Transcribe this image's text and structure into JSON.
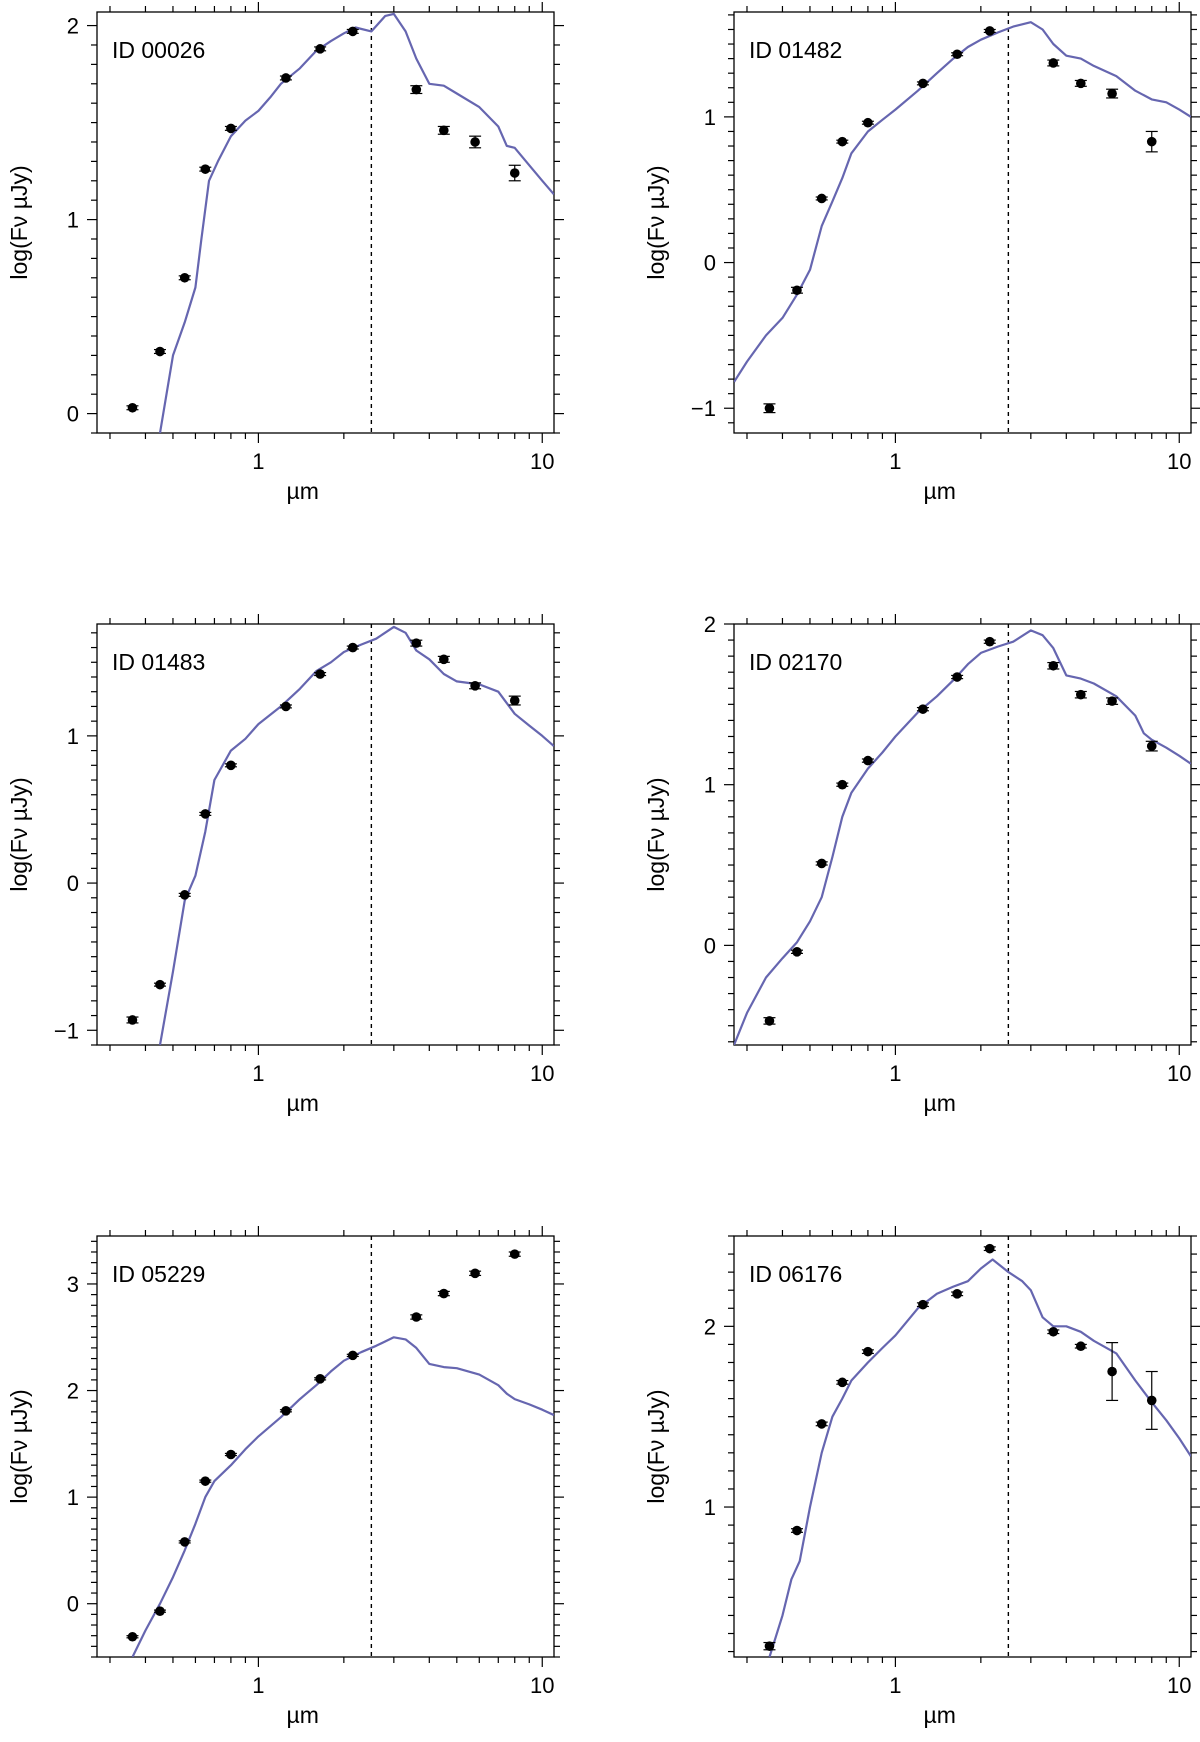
{
  "figure": {
    "xlabel": "µm",
    "ylabel": "log(Fν µJy)"
  },
  "chart_data": [
    {
      "type": "scatter",
      "title": "ID 00026",
      "xlabel": "µm",
      "ylabel": "log(Fν µJy)",
      "xscale": "log",
      "xlim": [
        0.27,
        11.0
      ],
      "ylim": [
        -0.1,
        2.07
      ],
      "xticks": [
        {
          "value": 1,
          "label": "1"
        },
        {
          "value": 10,
          "label": "10"
        }
      ],
      "yticks": [
        {
          "value": 0,
          "label": "0"
        },
        {
          "value": 1,
          "label": "1"
        },
        {
          "value": 2,
          "label": "2"
        }
      ],
      "vline": 2.5,
      "points": [
        {
          "x": 0.36,
          "y": 0.03,
          "err": 0.01
        },
        {
          "x": 0.45,
          "y": 0.32,
          "err": 0.01
        },
        {
          "x": 0.55,
          "y": 0.7,
          "err": 0.01
        },
        {
          "x": 0.65,
          "y": 1.26,
          "err": 0.01
        },
        {
          "x": 0.8,
          "y": 1.47,
          "err": 0.01
        },
        {
          "x": 1.25,
          "y": 1.73,
          "err": 0.01
        },
        {
          "x": 1.65,
          "y": 1.88,
          "err": 0.01
        },
        {
          "x": 2.15,
          "y": 1.97,
          "err": 0.01
        },
        {
          "x": 3.6,
          "y": 1.67,
          "err": 0.02
        },
        {
          "x": 4.5,
          "y": 1.46,
          "err": 0.02
        },
        {
          "x": 5.8,
          "y": 1.4,
          "err": 0.03
        },
        {
          "x": 8.0,
          "y": 1.24,
          "err": 0.04
        }
      ],
      "model": [
        [
          0.45,
          -0.1
        ],
        [
          0.5,
          0.3
        ],
        [
          0.55,
          0.47
        ],
        [
          0.6,
          0.65
        ],
        [
          0.63,
          0.9
        ],
        [
          0.67,
          1.2
        ],
        [
          0.72,
          1.3
        ],
        [
          0.8,
          1.43
        ],
        [
          0.9,
          1.51
        ],
        [
          1.0,
          1.56
        ],
        [
          1.1,
          1.63
        ],
        [
          1.2,
          1.7
        ],
        [
          1.4,
          1.78
        ],
        [
          1.6,
          1.87
        ],
        [
          1.8,
          1.92
        ],
        [
          2.0,
          1.96
        ],
        [
          2.2,
          1.99
        ],
        [
          2.5,
          1.97
        ],
        [
          2.8,
          2.05
        ],
        [
          3.0,
          2.06
        ],
        [
          3.3,
          1.97
        ],
        [
          3.6,
          1.83
        ],
        [
          4.0,
          1.7
        ],
        [
          4.5,
          1.69
        ],
        [
          5.0,
          1.65
        ],
        [
          6.0,
          1.58
        ],
        [
          7.0,
          1.48
        ],
        [
          7.5,
          1.38
        ],
        [
          8.0,
          1.37
        ],
        [
          9.0,
          1.28
        ],
        [
          10.0,
          1.2
        ],
        [
          11.0,
          1.13
        ]
      ]
    },
    {
      "type": "scatter",
      "title": "ID 01482",
      "xlabel": "µm",
      "ylabel": "log(Fν µJy)",
      "xscale": "log",
      "xlim": [
        0.27,
        11.0
      ],
      "ylim": [
        -1.17,
        1.72
      ],
      "xticks": [
        {
          "value": 1,
          "label": "1"
        },
        {
          "value": 10,
          "label": "10"
        }
      ],
      "yticks": [
        {
          "value": -1,
          "label": "−1"
        },
        {
          "value": 0,
          "label": "0"
        },
        {
          "value": 1,
          "label": "1"
        }
      ],
      "vline": 2.5,
      "points": [
        {
          "x": 0.36,
          "y": -1.0,
          "err": 0.03
        },
        {
          "x": 0.45,
          "y": -0.19,
          "err": 0.02
        },
        {
          "x": 0.55,
          "y": 0.44,
          "err": 0.01
        },
        {
          "x": 0.65,
          "y": 0.83,
          "err": 0.01
        },
        {
          "x": 0.8,
          "y": 0.96,
          "err": 0.01
        },
        {
          "x": 1.25,
          "y": 1.23,
          "err": 0.01
        },
        {
          "x": 1.65,
          "y": 1.43,
          "err": 0.01
        },
        {
          "x": 2.15,
          "y": 1.59,
          "err": 0.01
        },
        {
          "x": 3.6,
          "y": 1.37,
          "err": 0.02
        },
        {
          "x": 4.5,
          "y": 1.23,
          "err": 0.02
        },
        {
          "x": 5.8,
          "y": 1.16,
          "err": 0.03
        },
        {
          "x": 8.0,
          "y": 0.83,
          "err": 0.07
        }
      ],
      "model": [
        [
          0.27,
          -0.82
        ],
        [
          0.3,
          -0.68
        ],
        [
          0.35,
          -0.5
        ],
        [
          0.4,
          -0.38
        ],
        [
          0.45,
          -0.22
        ],
        [
          0.5,
          -0.05
        ],
        [
          0.55,
          0.25
        ],
        [
          0.6,
          0.42
        ],
        [
          0.65,
          0.58
        ],
        [
          0.7,
          0.75
        ],
        [
          0.8,
          0.9
        ],
        [
          0.9,
          0.98
        ],
        [
          1.0,
          1.05
        ],
        [
          1.2,
          1.18
        ],
        [
          1.4,
          1.3
        ],
        [
          1.6,
          1.4
        ],
        [
          1.8,
          1.48
        ],
        [
          2.0,
          1.53
        ],
        [
          2.3,
          1.58
        ],
        [
          2.6,
          1.62
        ],
        [
          3.0,
          1.65
        ],
        [
          3.3,
          1.6
        ],
        [
          3.6,
          1.5
        ],
        [
          4.0,
          1.42
        ],
        [
          4.5,
          1.4
        ],
        [
          5.0,
          1.35
        ],
        [
          6.0,
          1.28
        ],
        [
          7.0,
          1.18
        ],
        [
          8.0,
          1.12
        ],
        [
          9.0,
          1.1
        ],
        [
          10.0,
          1.05
        ],
        [
          11.0,
          1.0
        ]
      ]
    },
    {
      "type": "scatter",
      "title": "ID 01483",
      "xlabel": "µm",
      "ylabel": "log(Fν µJy)",
      "xscale": "log",
      "xlim": [
        0.27,
        11.0
      ],
      "ylim": [
        -1.1,
        1.76
      ],
      "xticks": [
        {
          "value": 1,
          "label": "1"
        },
        {
          "value": 10,
          "label": "10"
        }
      ],
      "yticks": [
        {
          "value": -1,
          "label": "−1"
        },
        {
          "value": 0,
          "label": "0"
        },
        {
          "value": 1,
          "label": "1"
        }
      ],
      "vline": 2.5,
      "points": [
        {
          "x": 0.36,
          "y": -0.93,
          "err": 0.02
        },
        {
          "x": 0.45,
          "y": -0.69,
          "err": 0.01
        },
        {
          "x": 0.55,
          "y": -0.08,
          "err": 0.01
        },
        {
          "x": 0.65,
          "y": 0.47,
          "err": 0.01
        },
        {
          "x": 0.8,
          "y": 0.8,
          "err": 0.01
        },
        {
          "x": 1.25,
          "y": 1.2,
          "err": 0.01
        },
        {
          "x": 1.65,
          "y": 1.42,
          "err": 0.01
        },
        {
          "x": 2.15,
          "y": 1.6,
          "err": 0.01
        },
        {
          "x": 3.6,
          "y": 1.63,
          "err": 0.02
        },
        {
          "x": 4.5,
          "y": 1.52,
          "err": 0.02
        },
        {
          "x": 5.8,
          "y": 1.34,
          "err": 0.02
        },
        {
          "x": 8.0,
          "y": 1.24,
          "err": 0.03
        }
      ],
      "model": [
        [
          0.45,
          -1.1
        ],
        [
          0.5,
          -0.6
        ],
        [
          0.55,
          -0.12
        ],
        [
          0.6,
          0.05
        ],
        [
          0.65,
          0.35
        ],
        [
          0.7,
          0.7
        ],
        [
          0.8,
          0.9
        ],
        [
          0.9,
          0.98
        ],
        [
          1.0,
          1.08
        ],
        [
          1.2,
          1.2
        ],
        [
          1.4,
          1.32
        ],
        [
          1.6,
          1.44
        ],
        [
          1.8,
          1.5
        ],
        [
          2.0,
          1.57
        ],
        [
          2.3,
          1.62
        ],
        [
          2.6,
          1.66
        ],
        [
          3.0,
          1.74
        ],
        [
          3.3,
          1.7
        ],
        [
          3.6,
          1.58
        ],
        [
          4.0,
          1.52
        ],
        [
          4.5,
          1.42
        ],
        [
          5.0,
          1.37
        ],
        [
          6.0,
          1.35
        ],
        [
          7.0,
          1.3
        ],
        [
          8.0,
          1.15
        ],
        [
          9.0,
          1.07
        ],
        [
          10.0,
          1.0
        ],
        [
          11.0,
          0.93
        ]
      ]
    },
    {
      "type": "scatter",
      "title": "ID 02170",
      "xlabel": "µm",
      "ylabel": "log(Fν µJy)",
      "xscale": "log",
      "xlim": [
        0.27,
        11.0
      ],
      "ylim": [
        -0.62,
        2.0
      ],
      "xticks": [
        {
          "value": 1,
          "label": "1"
        },
        {
          "value": 10,
          "label": "10"
        }
      ],
      "yticks": [
        {
          "value": 0,
          "label": "0"
        },
        {
          "value": 1,
          "label": "1"
        },
        {
          "value": 2,
          "label": "2"
        }
      ],
      "vline": 2.5,
      "points": [
        {
          "x": 0.36,
          "y": -0.47,
          "err": 0.02
        },
        {
          "x": 0.45,
          "y": -0.04,
          "err": 0.01
        },
        {
          "x": 0.55,
          "y": 0.51,
          "err": 0.01
        },
        {
          "x": 0.65,
          "y": 1.0,
          "err": 0.01
        },
        {
          "x": 0.8,
          "y": 1.15,
          "err": 0.01
        },
        {
          "x": 1.25,
          "y": 1.47,
          "err": 0.01
        },
        {
          "x": 1.65,
          "y": 1.67,
          "err": 0.01
        },
        {
          "x": 2.15,
          "y": 1.89,
          "err": 0.01
        },
        {
          "x": 3.6,
          "y": 1.74,
          "err": 0.02
        },
        {
          "x": 4.5,
          "y": 1.56,
          "err": 0.02
        },
        {
          "x": 5.8,
          "y": 1.52,
          "err": 0.02
        },
        {
          "x": 8.0,
          "y": 1.24,
          "err": 0.03
        }
      ],
      "model": [
        [
          0.27,
          -0.62
        ],
        [
          0.3,
          -0.42
        ],
        [
          0.35,
          -0.2
        ],
        [
          0.4,
          -0.08
        ],
        [
          0.45,
          0.02
        ],
        [
          0.5,
          0.15
        ],
        [
          0.55,
          0.3
        ],
        [
          0.6,
          0.55
        ],
        [
          0.65,
          0.8
        ],
        [
          0.7,
          0.95
        ],
        [
          0.8,
          1.1
        ],
        [
          0.9,
          1.2
        ],
        [
          1.0,
          1.3
        ],
        [
          1.2,
          1.45
        ],
        [
          1.4,
          1.55
        ],
        [
          1.6,
          1.65
        ],
        [
          1.8,
          1.75
        ],
        [
          2.0,
          1.82
        ],
        [
          2.3,
          1.86
        ],
        [
          2.6,
          1.89
        ],
        [
          3.0,
          1.96
        ],
        [
          3.3,
          1.93
        ],
        [
          3.6,
          1.85
        ],
        [
          4.0,
          1.68
        ],
        [
          4.5,
          1.66
        ],
        [
          5.0,
          1.63
        ],
        [
          6.0,
          1.55
        ],
        [
          7.0,
          1.43
        ],
        [
          7.5,
          1.32
        ],
        [
          8.0,
          1.28
        ],
        [
          9.0,
          1.23
        ],
        [
          10.0,
          1.18
        ],
        [
          11.0,
          1.13
        ]
      ]
    },
    {
      "type": "scatter",
      "title": "ID 05229",
      "xlabel": "µm",
      "ylabel": "log(Fν µJy)",
      "xscale": "log",
      "xlim": [
        0.27,
        11.0
      ],
      "ylim": [
        -0.5,
        3.45
      ],
      "xticks": [
        {
          "value": 1,
          "label": "1"
        },
        {
          "value": 10,
          "label": "10"
        }
      ],
      "yticks": [
        {
          "value": 0,
          "label": "0"
        },
        {
          "value": 1,
          "label": "1"
        },
        {
          "value": 2,
          "label": "2"
        },
        {
          "value": 3,
          "label": "3"
        }
      ],
      "vline": 2.5,
      "points": [
        {
          "x": 0.36,
          "y": -0.31,
          "err": 0.01
        },
        {
          "x": 0.45,
          "y": -0.07,
          "err": 0.01
        },
        {
          "x": 0.55,
          "y": 0.58,
          "err": 0.01
        },
        {
          "x": 0.65,
          "y": 1.15,
          "err": 0.01
        },
        {
          "x": 0.8,
          "y": 1.4,
          "err": 0.01
        },
        {
          "x": 1.25,
          "y": 1.81,
          "err": 0.01
        },
        {
          "x": 1.65,
          "y": 2.11,
          "err": 0.01
        },
        {
          "x": 2.15,
          "y": 2.33,
          "err": 0.01
        },
        {
          "x": 3.6,
          "y": 2.69,
          "err": 0.02
        },
        {
          "x": 4.5,
          "y": 2.91,
          "err": 0.02
        },
        {
          "x": 5.8,
          "y": 3.1,
          "err": 0.02
        },
        {
          "x": 8.0,
          "y": 3.28,
          "err": 0.02
        }
      ],
      "model": [
        [
          0.36,
          -0.5
        ],
        [
          0.4,
          -0.25
        ],
        [
          0.45,
          0.0
        ],
        [
          0.5,
          0.25
        ],
        [
          0.55,
          0.5
        ],
        [
          0.6,
          0.75
        ],
        [
          0.65,
          1.0
        ],
        [
          0.7,
          1.15
        ],
        [
          0.8,
          1.3
        ],
        [
          0.9,
          1.45
        ],
        [
          1.0,
          1.57
        ],
        [
          1.2,
          1.75
        ],
        [
          1.4,
          1.92
        ],
        [
          1.6,
          2.05
        ],
        [
          1.8,
          2.18
        ],
        [
          2.0,
          2.28
        ],
        [
          2.3,
          2.36
        ],
        [
          2.6,
          2.42
        ],
        [
          3.0,
          2.5
        ],
        [
          3.3,
          2.48
        ],
        [
          3.6,
          2.4
        ],
        [
          4.0,
          2.25
        ],
        [
          4.5,
          2.22
        ],
        [
          5.0,
          2.21
        ],
        [
          6.0,
          2.15
        ],
        [
          7.0,
          2.05
        ],
        [
          7.5,
          1.97
        ],
        [
          8.0,
          1.92
        ],
        [
          9.0,
          1.87
        ],
        [
          10.0,
          1.82
        ],
        [
          11.0,
          1.77
        ]
      ]
    },
    {
      "type": "scatter",
      "title": "ID 06176",
      "xlabel": "µm",
      "ylabel": "log(Fν µJy)",
      "xscale": "log",
      "xlim": [
        0.27,
        11.0
      ],
      "ylim": [
        0.17,
        2.5
      ],
      "xticks": [
        {
          "value": 1,
          "label": "1"
        },
        {
          "value": 10,
          "label": "10"
        }
      ],
      "yticks": [
        {
          "value": 1,
          "label": "1"
        },
        {
          "value": 2,
          "label": "2"
        }
      ],
      "vline": 2.5,
      "points": [
        {
          "x": 0.36,
          "y": 0.23,
          "err": 0.02
        },
        {
          "x": 0.45,
          "y": 0.87,
          "err": 0.01
        },
        {
          "x": 0.55,
          "y": 1.46,
          "err": 0.01
        },
        {
          "x": 0.65,
          "y": 1.69,
          "err": 0.01
        },
        {
          "x": 0.8,
          "y": 1.86,
          "err": 0.01
        },
        {
          "x": 1.25,
          "y": 2.12,
          "err": 0.01
        },
        {
          "x": 1.65,
          "y": 2.18,
          "err": 0.01
        },
        {
          "x": 2.15,
          "y": 2.43,
          "err": 0.01
        },
        {
          "x": 3.6,
          "y": 1.97,
          "err": 0.01
        },
        {
          "x": 4.5,
          "y": 1.89,
          "err": 0.01
        },
        {
          "x": 5.8,
          "y": 1.75,
          "err": 0.16
        },
        {
          "x": 8.0,
          "y": 1.59,
          "err": 0.16
        }
      ],
      "model": [
        [
          0.36,
          0.17
        ],
        [
          0.4,
          0.4
        ],
        [
          0.43,
          0.6
        ],
        [
          0.46,
          0.7
        ],
        [
          0.5,
          1.0
        ],
        [
          0.55,
          1.3
        ],
        [
          0.6,
          1.5
        ],
        [
          0.65,
          1.6
        ],
        [
          0.7,
          1.7
        ],
        [
          0.8,
          1.8
        ],
        [
          0.9,
          1.88
        ],
        [
          1.0,
          1.95
        ],
        [
          1.2,
          2.1
        ],
        [
          1.4,
          2.18
        ],
        [
          1.6,
          2.22
        ],
        [
          1.8,
          2.25
        ],
        [
          2.0,
          2.32
        ],
        [
          2.2,
          2.37
        ],
        [
          2.5,
          2.3
        ],
        [
          2.8,
          2.25
        ],
        [
          3.0,
          2.2
        ],
        [
          3.3,
          2.05
        ],
        [
          3.6,
          2.0
        ],
        [
          4.0,
          2.0
        ],
        [
          4.5,
          1.97
        ],
        [
          5.0,
          1.92
        ],
        [
          6.0,
          1.85
        ],
        [
          7.0,
          1.7
        ],
        [
          8.0,
          1.58
        ],
        [
          9.0,
          1.48
        ],
        [
          10.0,
          1.38
        ],
        [
          11.0,
          1.28
        ]
      ]
    }
  ]
}
